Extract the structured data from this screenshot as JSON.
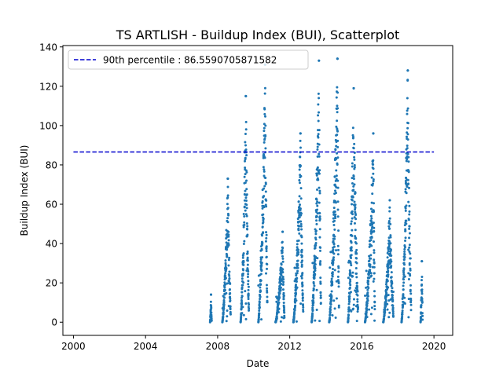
{
  "chart_data": {
    "type": "scatter",
    "title": "TS ARTLISH - Buildup Index (BUI), Scatterplot",
    "xlabel": "Date",
    "ylabel": "Buildup Index (BUI)",
    "xlim": [
      "1999-06-01",
      "2021-01-15"
    ],
    "ylim": [
      -6.7,
      140.7
    ],
    "x_ticks": [
      "2000",
      "2004",
      "2008",
      "2012",
      "2016",
      "2020"
    ],
    "y_ticks": [
      0,
      20,
      40,
      60,
      80,
      100,
      120,
      140
    ],
    "grid": false,
    "legend_position": "top-left",
    "reference_line": {
      "label": "90th percentile : 86.5590705871582",
      "value": 86.5590705871582,
      "x_start": "2000-01-01",
      "x_end": "2020-01-01",
      "color": "#0000cd",
      "style": "dashed"
    },
    "series": [
      {
        "color": "#1f77b4",
        "seasons": [
          {
            "start": "2007-08-01",
            "end": "2007-09-01",
            "peak_date": "2007-08-20",
            "peak": 14
          },
          {
            "start": "2008-04-05",
            "end": "2008-09-20",
            "peak_date": "2008-07-25",
            "peak": 73
          },
          {
            "start": "2009-04-10",
            "end": "2009-09-25",
            "peak_date": "2009-07-25",
            "peak": 115
          },
          {
            "start": "2010-04-05",
            "end": "2010-10-05",
            "peak_date": "2010-08-20",
            "peak": 131
          },
          {
            "start": "2011-03-20",
            "end": "2011-09-15",
            "peak_date": "2011-08-10",
            "peak": 46
          },
          {
            "start": "2012-03-15",
            "end": "2012-09-30",
            "peak_date": "2012-08-05",
            "peak": 96
          },
          {
            "start": "2013-03-20",
            "end": "2013-09-25",
            "peak_date": "2013-08-15",
            "peak": 133
          },
          {
            "start": "2014-03-10",
            "end": "2014-09-25",
            "peak_date": "2014-08-25",
            "peak": 134
          },
          {
            "start": "2015-03-25",
            "end": "2015-10-15",
            "peak_date": "2015-07-20",
            "peak": 119
          },
          {
            "start": "2016-03-05",
            "end": "2016-09-20",
            "peak_date": "2016-08-20",
            "peak": 96
          },
          {
            "start": "2017-03-10",
            "end": "2017-10-01",
            "peak_date": "2017-07-20",
            "peak": 62
          },
          {
            "start": "2018-03-15",
            "end": "2018-09-25",
            "peak_date": "2018-07-20",
            "peak": 128
          },
          {
            "start": "2019-04-05",
            "end": "2019-05-15",
            "peak_date": "2019-05-01",
            "peak": 31
          }
        ]
      }
    ]
  }
}
